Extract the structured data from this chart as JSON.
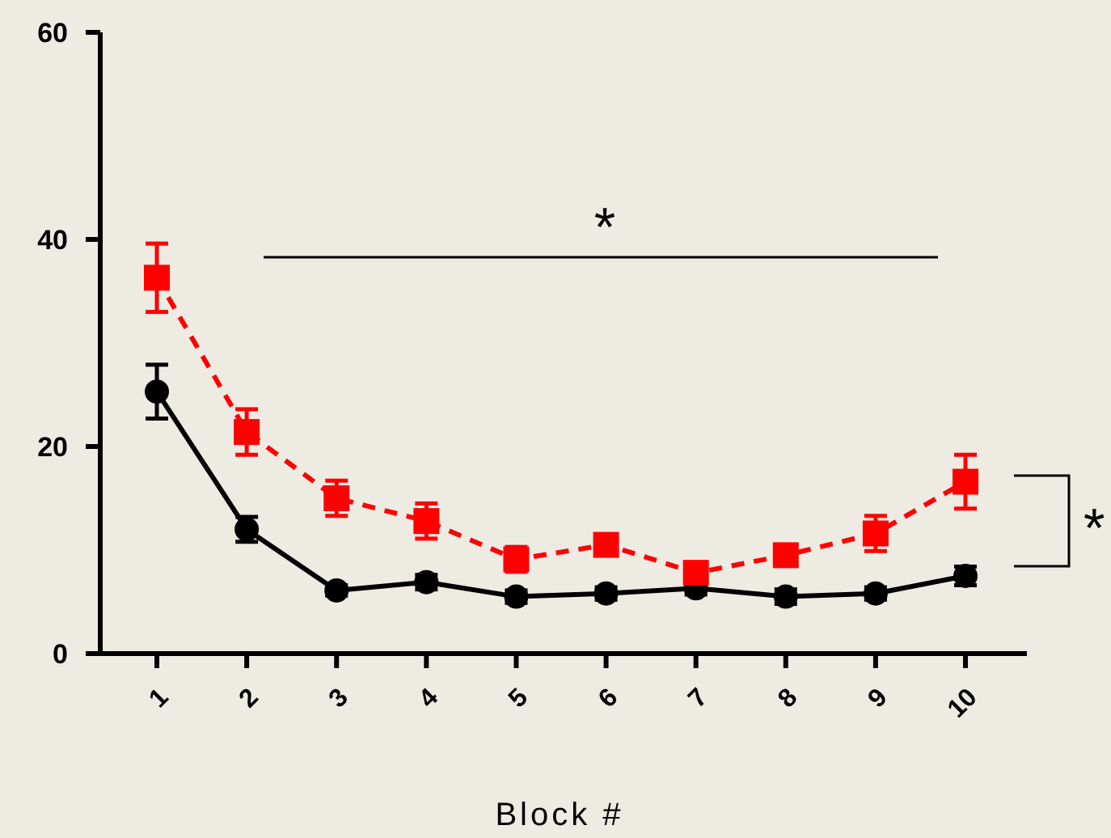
{
  "chart_data": {
    "type": "line",
    "xlabel": "Block #",
    "categories": [
      "1",
      "2",
      "3",
      "4",
      "5",
      "6",
      "7",
      "8",
      "9",
      "10"
    ],
    "ylim": [
      0,
      60
    ],
    "yticks": [
      0,
      20,
      40,
      60
    ],
    "grid": false,
    "series": [
      {
        "color": "#000000",
        "marker": "circle",
        "line_style": "solid",
        "values": [
          25.3,
          12.0,
          6.1,
          6.9,
          5.5,
          5.8,
          6.3,
          5.5,
          5.8,
          7.5
        ],
        "errors": [
          2.6,
          1.2,
          0.5,
          0.7,
          0.6,
          0.6,
          0.6,
          0.7,
          0.6,
          0.9
        ]
      },
      {
        "color": "#ff0000",
        "marker": "square",
        "line_style": "dashed",
        "values": [
          36.3,
          21.4,
          15.0,
          12.8,
          9.1,
          10.5,
          7.8,
          9.5,
          11.6,
          16.6
        ],
        "errors": [
          3.3,
          2.2,
          1.7,
          1.7,
          1.2,
          1.0,
          0.8,
          0.7,
          1.7,
          2.6
        ]
      }
    ],
    "annotations": [
      "*",
      "*"
    ]
  }
}
